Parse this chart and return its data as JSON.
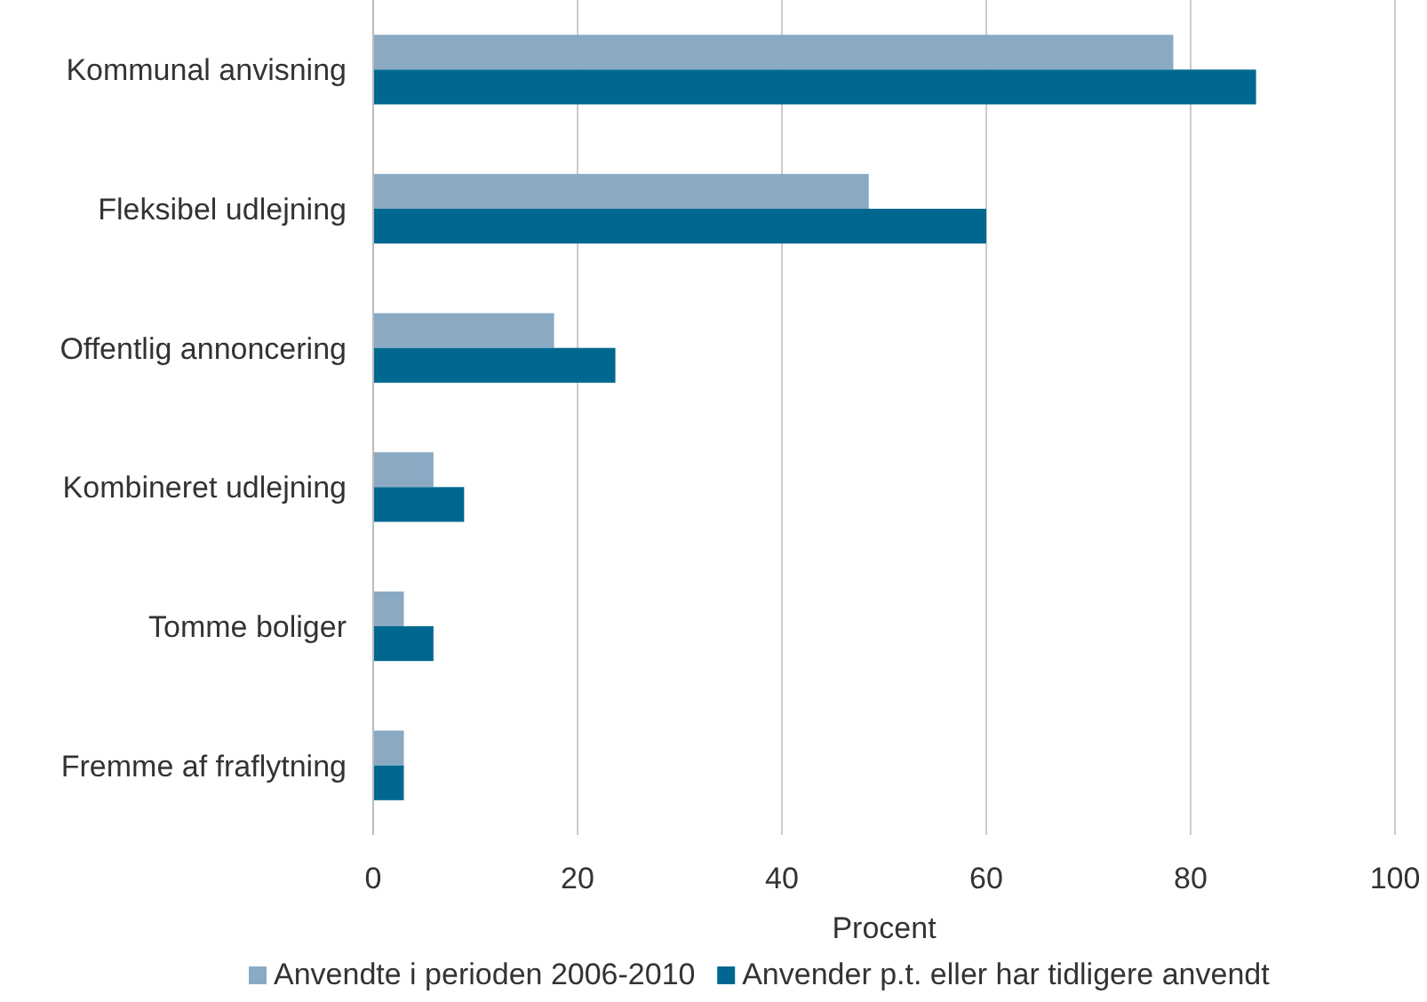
{
  "chart_data": {
    "type": "bar",
    "orientation": "horizontal",
    "xlabel": "Procent",
    "categories": [
      "Kommunal anvisning",
      "Fleksibel udlejning",
      "Offentlig annoncering",
      "Kombineret udlejning",
      "Tomme boliger",
      "Fremme af fraflytning"
    ],
    "series": [
      {
        "name": "Anvendte i perioden 2006-2010",
        "color": "#8aaac4",
        "values": [
          78.3,
          48.5,
          17.7,
          5.9,
          3.0,
          3.0
        ]
      },
      {
        "name": "Anvender p.t. eller har tidligere anvendt",
        "color": "#006890",
        "values": [
          86.4,
          60.0,
          23.7,
          8.9,
          5.9,
          3.0
        ]
      }
    ],
    "xlim": [
      0,
      100
    ],
    "xticks": [
      0,
      20,
      40,
      60,
      80,
      100
    ],
    "grid": "x",
    "legend": "bottom"
  }
}
